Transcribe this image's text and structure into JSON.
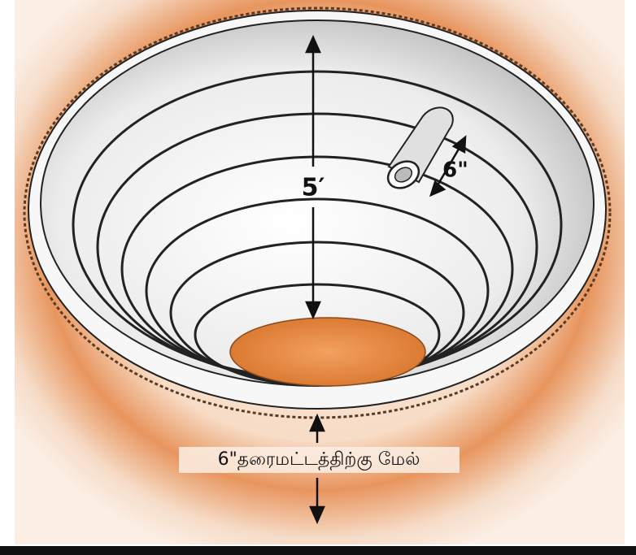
{
  "labels": {
    "depth": "5′",
    "pipe": "6\"",
    "rim": "6\"தரைமட்டத்திற்கு மேல்"
  }
}
